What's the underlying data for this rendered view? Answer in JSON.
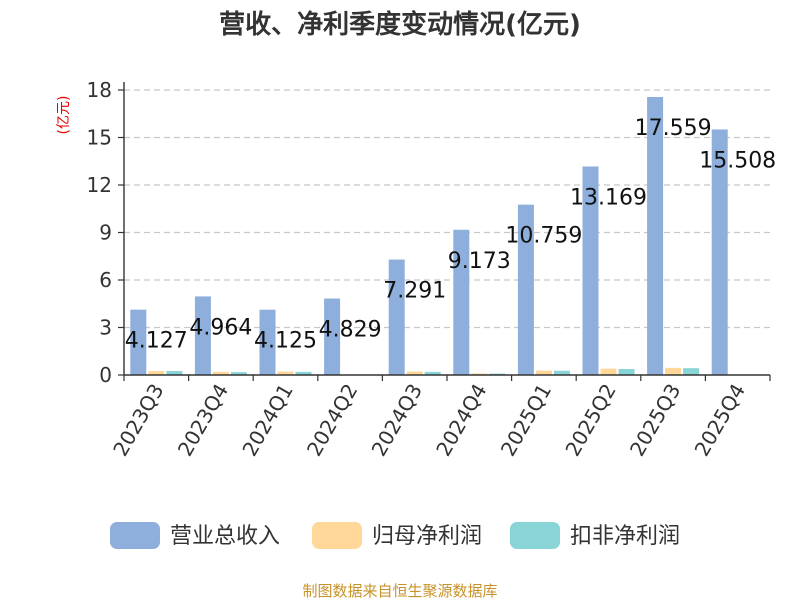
{
  "chart_data": {
    "type": "bar",
    "title": "营收、净利季度变动情况(亿元)",
    "ylabel": "(亿元)",
    "xlabel": "",
    "categories": [
      "2023Q3",
      "2023Q4",
      "2024Q1",
      "2024Q2",
      "2024Q3",
      "2024Q4",
      "2025Q1",
      "2025Q2",
      "2025Q3",
      "2025Q4"
    ],
    "yticks": [
      0,
      3,
      6,
      9,
      12,
      15,
      18
    ],
    "ylim": [
      0,
      18
    ],
    "grid": true,
    "legend_position": "bottom",
    "series": [
      {
        "name": "营业总收入",
        "color": "#8eaedc",
        "values": [
          4.127,
          4.964,
          4.125,
          4.829,
          7.291,
          9.173,
          10.759,
          13.169,
          17.559,
          15.508
        ],
        "labels": [
          "4.127",
          "4.964",
          "4.125",
          "4.829",
          "7.291",
          "9.173",
          "10.759",
          "13.169",
          "17.559",
          "15.508"
        ]
      },
      {
        "name": "归母净利润",
        "color": "#ffd899",
        "values": [
          0.25,
          0.2,
          0.22,
          0.02,
          0.22,
          0.1,
          0.28,
          0.4,
          0.45,
          0.03
        ]
      },
      {
        "name": "扣非净利润",
        "color": "#88d4d6",
        "values": [
          0.25,
          0.18,
          0.2,
          0.01,
          0.2,
          0.09,
          0.27,
          0.38,
          0.43,
          0.02
        ]
      }
    ]
  },
  "source": "制图数据来自恒生聚源数据库"
}
